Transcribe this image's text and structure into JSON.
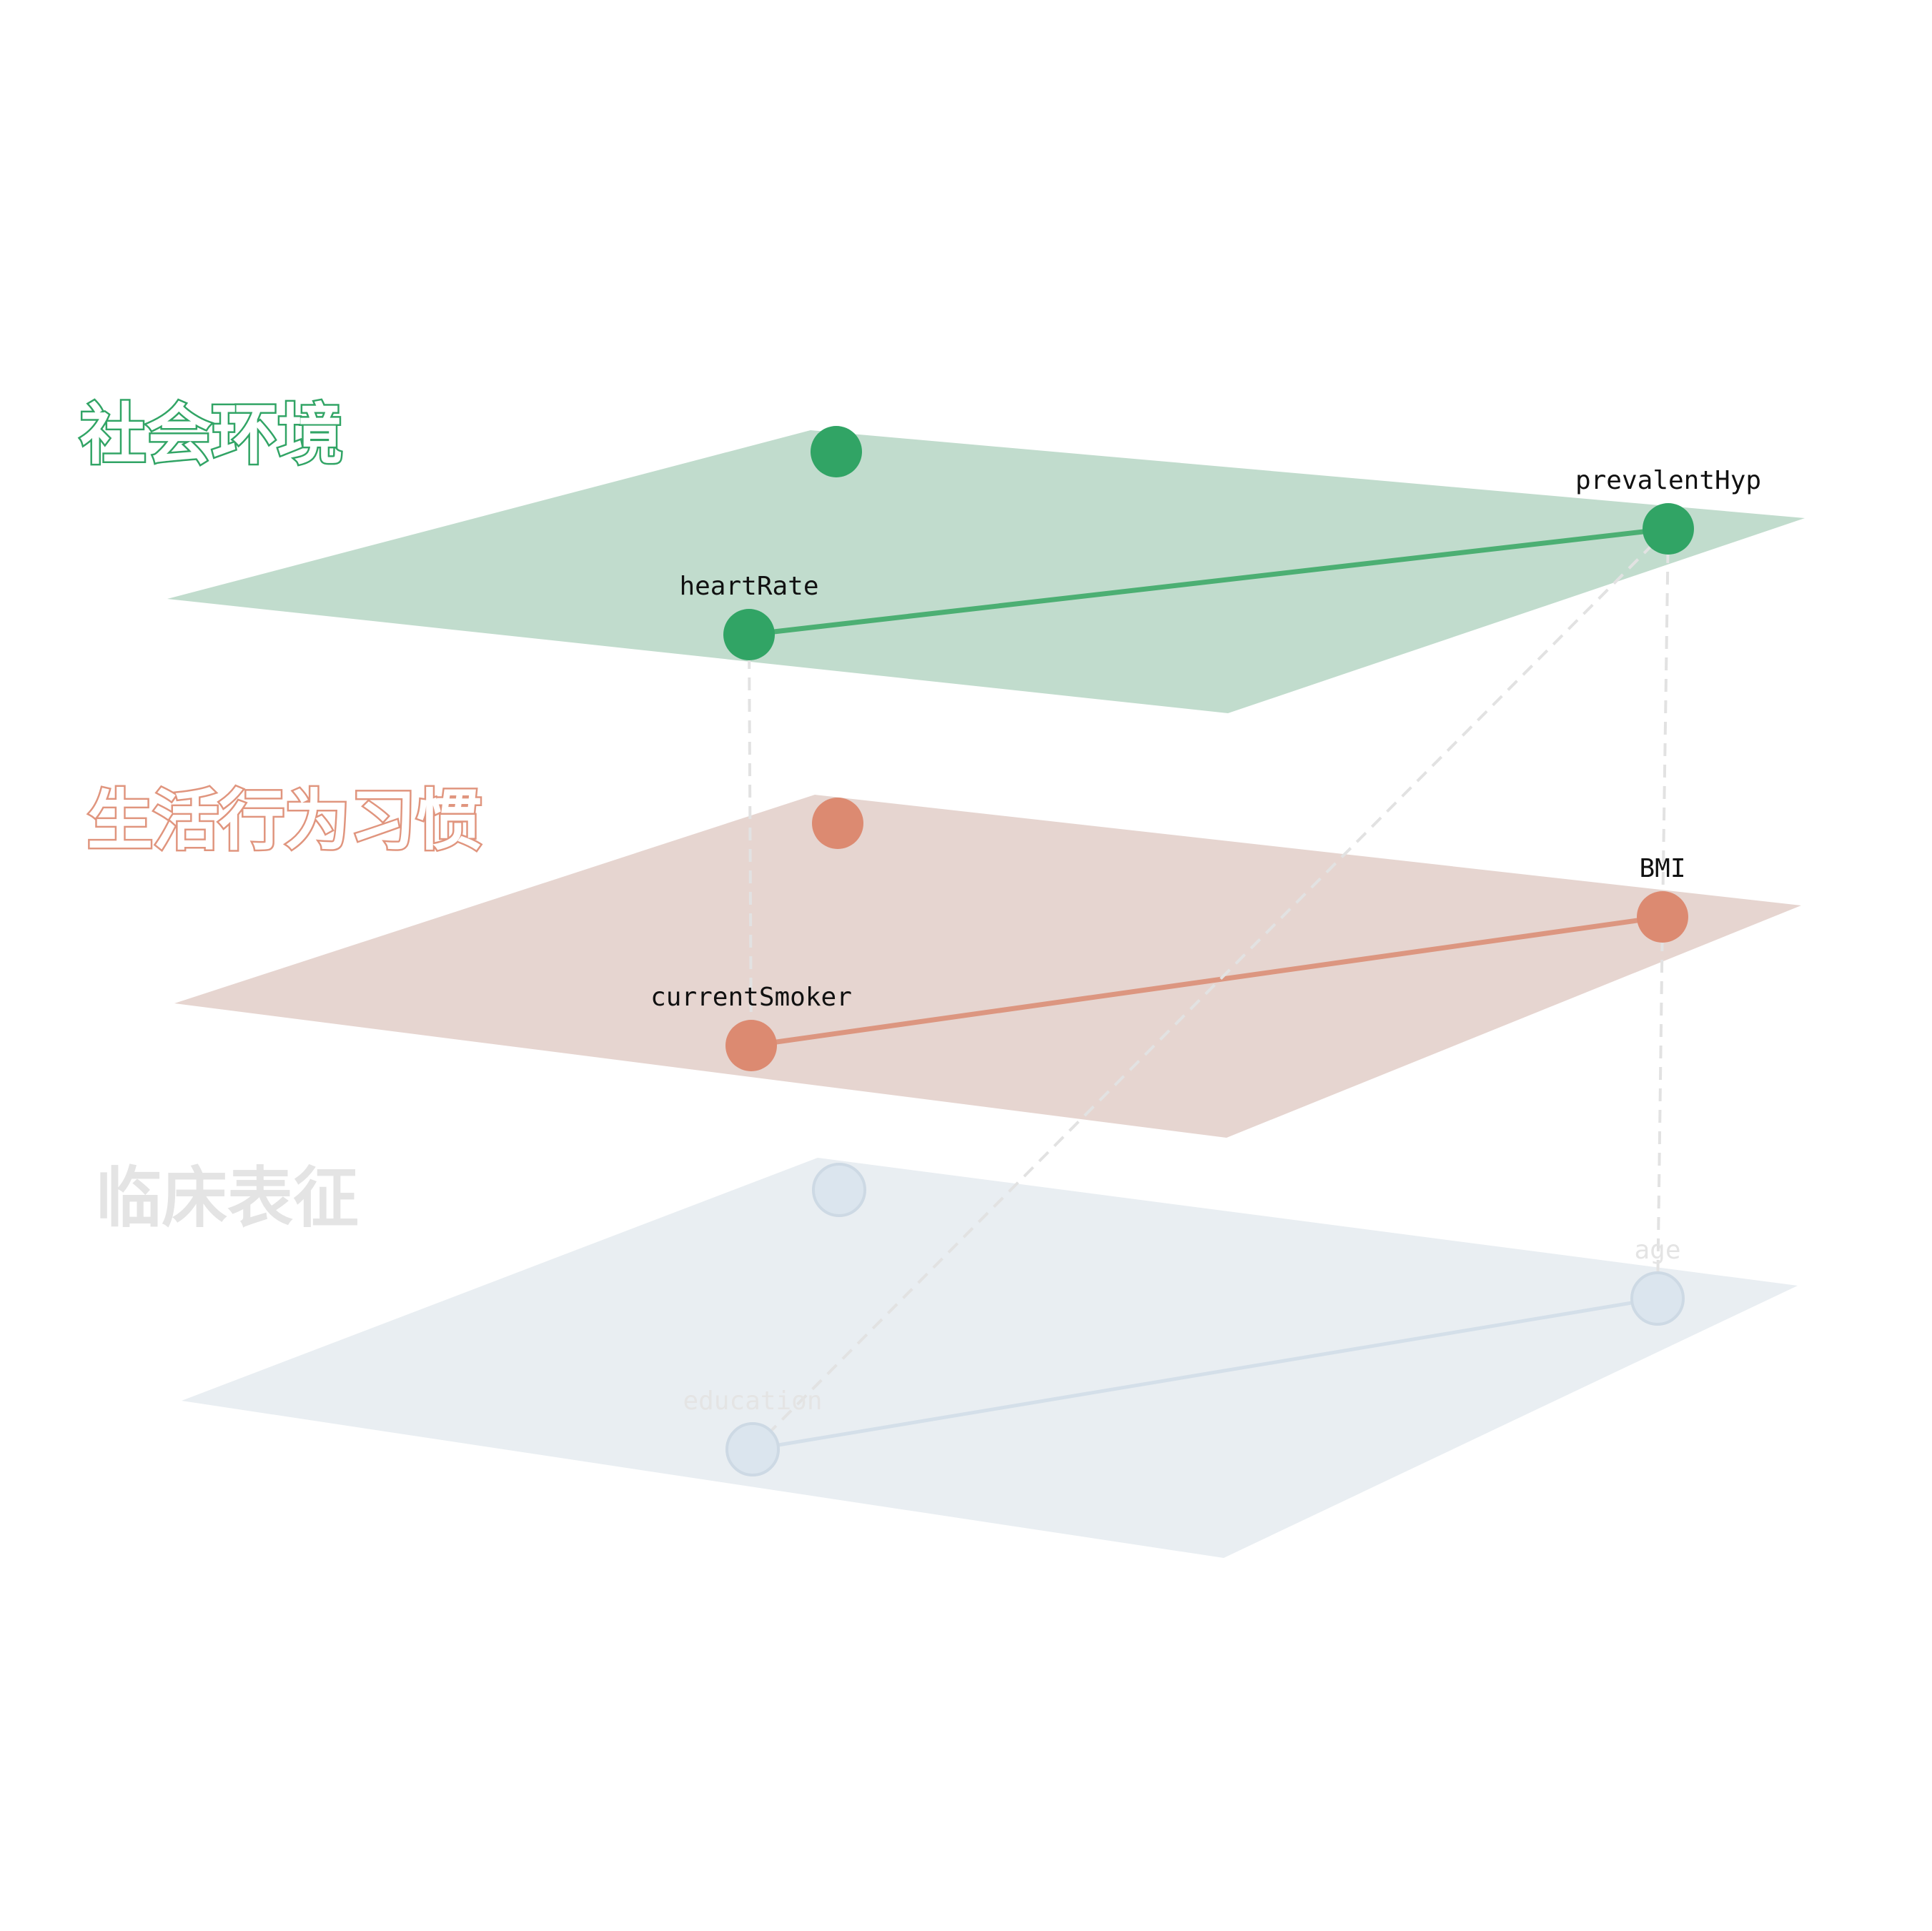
{
  "layers": [
    {
      "id": "social",
      "title": "社会环境",
      "plane_color": "#c1dccd",
      "node_color": "#31a465",
      "edge_color": "#4caf73",
      "title_stroke": "#31a465",
      "nodes": [
        {
          "name": "",
          "label_color": "#111111"
        },
        {
          "name": "prevalentHyp",
          "label_color": "#111111"
        },
        {
          "name": "heartRate",
          "label_color": "#111111"
        }
      ],
      "edges": [
        [
          "heartRate",
          "prevalentHyp"
        ]
      ]
    },
    {
      "id": "lifestyle",
      "title": "生活行为习惯",
      "plane_color": "#e6d5d0",
      "node_color": "#dc8a71",
      "edge_color": "#dc9680",
      "title_stroke": "#e0957e",
      "nodes": [
        {
          "name": "",
          "label_color": "#111111"
        },
        {
          "name": "BMI",
          "label_color": "#111111"
        },
        {
          "name": "currentSmoker",
          "label_color": "#111111"
        }
      ],
      "edges": [
        [
          "currentSmoker",
          "BMI"
        ]
      ]
    },
    {
      "id": "clinical",
      "title": "临床表征",
      "plane_color": "#e9eef2",
      "node_color": "#dbe5ee",
      "edge_color": "#d4dfe9",
      "title_stroke": "#e2e2e2",
      "nodes": [
        {
          "name": "",
          "label_color": "#e4e4e4"
        },
        {
          "name": "age",
          "label_color": "#e4e4e4"
        },
        {
          "name": "education",
          "label_color": "#e4e4e4"
        }
      ],
      "edges": [
        [
          "education",
          "age"
        ]
      ]
    }
  ],
  "interlayer_edges": [
    {
      "from": "heartRate",
      "to": "currentSmoker"
    },
    {
      "from": "prevalentHyp",
      "to": "BMI"
    },
    {
      "from": "BMI",
      "to": "age"
    },
    {
      "from": "prevalentHyp",
      "to": "education"
    }
  ],
  "interlayer_edge_color": "#e2e2e2"
}
